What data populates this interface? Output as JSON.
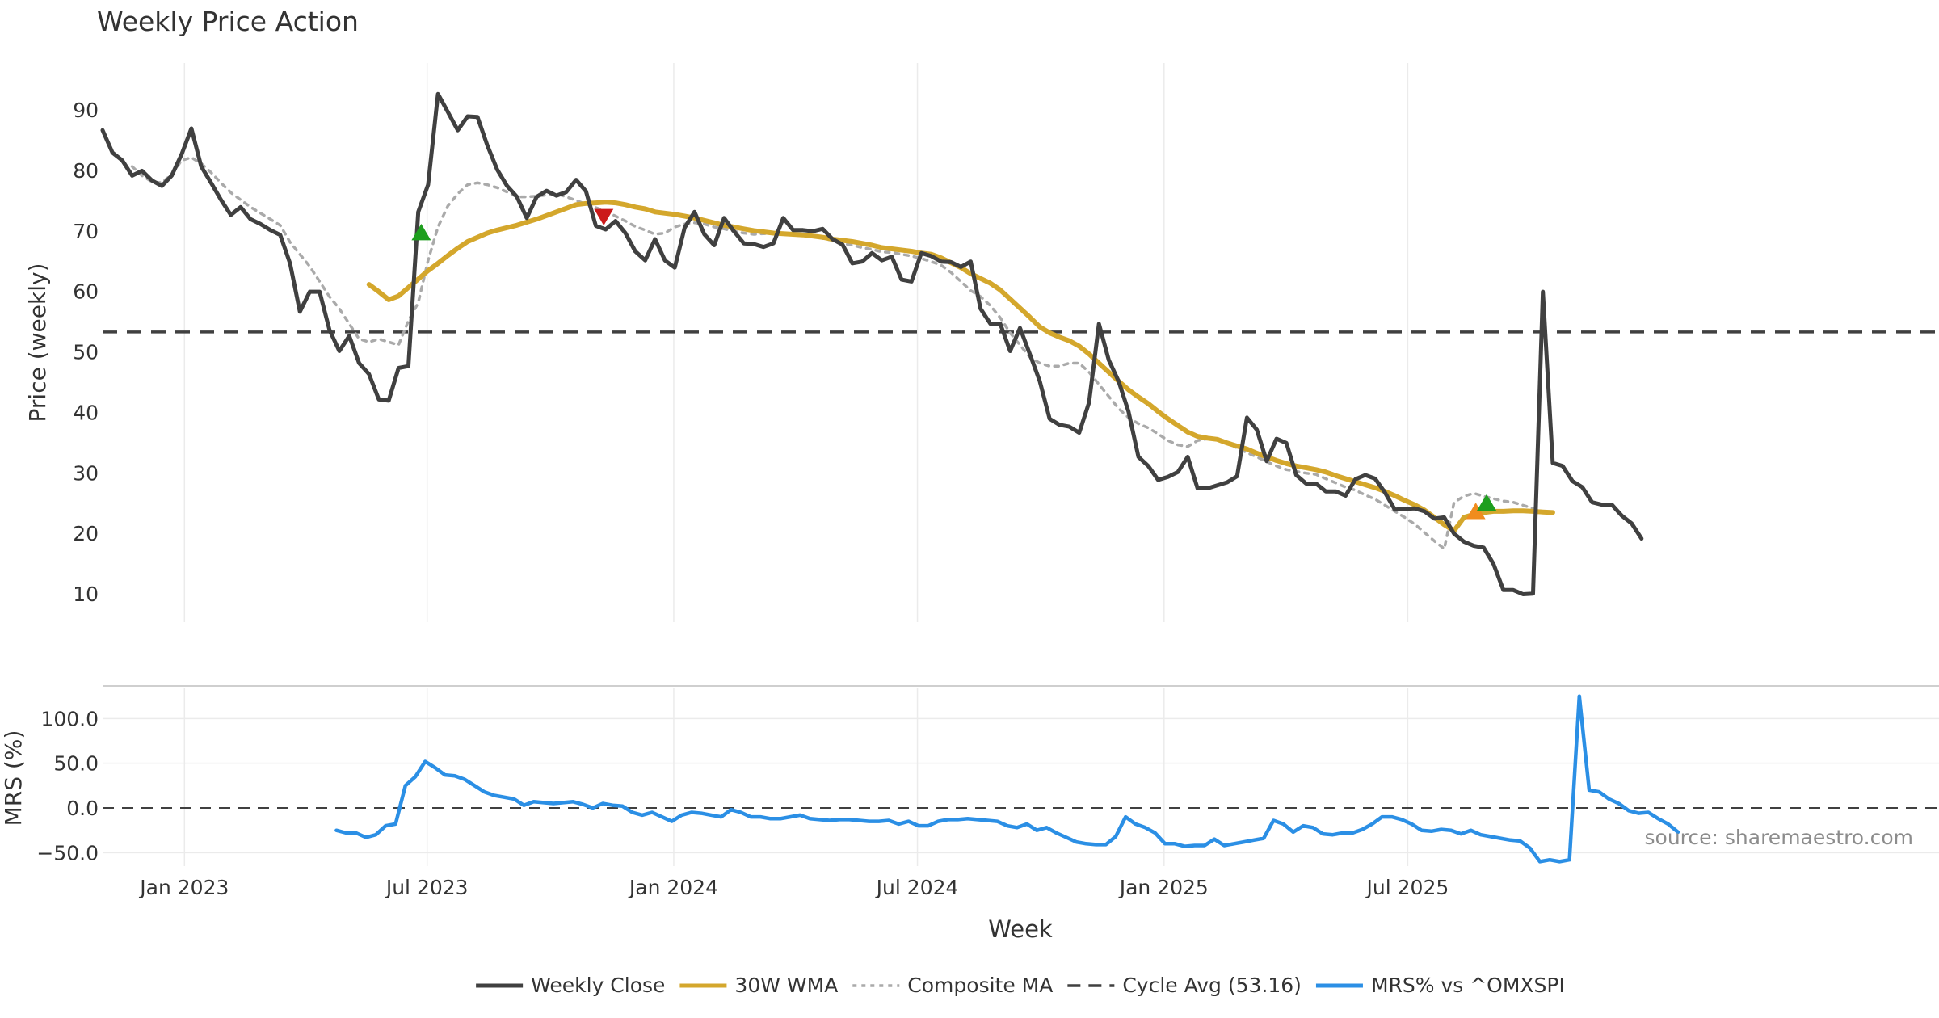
{
  "chart_data": [
    {
      "type": "line",
      "title": "Weekly Price Action",
      "xlabel": "",
      "ylabel": "Price (weekly)",
      "ylim": [
        4,
        98
      ],
      "yticks": [
        10,
        20,
        30,
        40,
        50,
        60,
        70,
        80,
        90
      ],
      "x_range_weeks": [
        0,
        155
      ],
      "cycle_avg": 53.16,
      "series": [
        {
          "name": "Weekly Close",
          "color": "#404040",
          "style": "solid",
          "start_week": 0,
          "values": [
            86.5,
            82.8,
            81.5,
            79,
            79.8,
            78.2,
            77.3,
            79,
            82.5,
            86.8,
            80.5,
            77.8,
            75,
            72.5,
            73.8,
            71.8,
            71,
            70,
            69.2,
            64.5,
            56.5,
            59.8,
            59.8,
            53.5,
            50,
            52.5,
            48,
            46.2,
            42,
            41.8,
            47.2,
            47.5,
            73,
            77.5,
            92.5,
            89.5,
            86.5,
            88.8,
            88.7,
            84,
            80,
            77.3,
            75.5,
            72,
            75.5,
            76.5,
            75.7,
            76.3,
            78.3,
            76.4,
            70.7,
            70.1,
            71.5,
            69.5,
            66.5,
            65,
            68.5,
            65,
            63.8,
            70.4,
            73,
            69.3,
            67.5,
            72,
            69.8,
            67.8,
            67.7,
            67.2,
            67.8,
            72,
            70,
            70,
            69.8,
            70.2,
            68.5,
            67.6,
            64.5,
            64.8,
            66.2,
            65,
            65.6,
            61.8,
            61.5,
            66.2,
            65.7,
            64.8,
            64.7,
            63.9,
            64.8,
            57,
            54.5,
            54.5,
            50,
            53.8,
            49.5,
            45,
            38.8,
            37.8,
            37.5,
            36.5,
            41.5,
            54.5,
            48.5,
            45,
            40,
            32.5,
            31,
            28.7,
            29.2,
            30,
            32.5,
            27.3,
            27.3,
            27.8,
            28.3,
            29.3,
            39,
            37,
            31.8,
            35.5,
            34.8,
            29.5,
            28.1,
            28.1,
            26.8,
            26.8,
            26.1,
            28.8,
            29.5,
            28.9,
            26.6,
            23.8,
            23.9,
            24,
            23.5,
            22.3,
            22.5,
            19.8,
            18.5,
            17.8,
            17.5,
            14.8,
            10.5,
            10.5,
            9.8,
            9.9,
            59.8,
            31.5,
            31,
            28.5,
            27.5,
            25,
            24.6,
            24.6,
            22.8,
            21.5,
            19
          ]
        },
        {
          "name": "30W WMA",
          "color": "#d4a72c",
          "style": "solid",
          "start_week": 27,
          "values": [
            61,
            59.8,
            58.5,
            59.1,
            60.5,
            61.9,
            63.3,
            64.5,
            65.8,
            67,
            68.1,
            68.8,
            69.5,
            70,
            70.4,
            70.8,
            71.3,
            71.8,
            72.4,
            73,
            73.6,
            74.2,
            74.4,
            74.5,
            74.6,
            74.5,
            74.2,
            73.8,
            73.5,
            73,
            72.8,
            72.6,
            72.3,
            72,
            71.6,
            71.2,
            70.8,
            70.5,
            70.2,
            69.9,
            69.7,
            69.5,
            69.4,
            69.3,
            69.2,
            69,
            68.8,
            68.5,
            68.3,
            68.1,
            67.8,
            67.5,
            67.1,
            66.9,
            66.7,
            66.5,
            66.2,
            66,
            65.4,
            64.6,
            63.8,
            62.8,
            62,
            61.2,
            60.1,
            58.6,
            57.1,
            55.6,
            54,
            53,
            52.3,
            51.7,
            50.8,
            49.5,
            48,
            46.5,
            45,
            43.6,
            42.4,
            41.3,
            40,
            38.8,
            37.7,
            36.6,
            35.9,
            35.6,
            35.4,
            34.8,
            34.3,
            33.8,
            33.1,
            32.5,
            31.9,
            31.4,
            31,
            30.7,
            30.4,
            30,
            29.4,
            28.9,
            28.4,
            27.9,
            27.4,
            26.8,
            26.1,
            25.3,
            24.6,
            23.7,
            22.5,
            21.3,
            20.3,
            22.5,
            23,
            23.3,
            23.5,
            23.5,
            23.6,
            23.6,
            23.5,
            23.4,
            23.3
          ]
        },
        {
          "name": "Composite MA",
          "color": "#aaaaaa",
          "style": "dotted",
          "start_week": 3,
          "values": [
            80.5,
            79,
            78,
            77.8,
            79.2,
            81.5,
            82,
            81,
            79.5,
            77.8,
            76.2,
            75,
            73.8,
            72.8,
            71.8,
            70.8,
            68,
            66,
            64,
            61.5,
            59,
            57,
            54.5,
            52,
            51.5,
            52,
            51.5,
            51,
            55,
            58,
            65,
            70.5,
            74,
            76,
            77.5,
            77.8,
            77.5,
            77,
            76.3,
            75.5,
            75.5,
            75.6,
            75.8,
            76,
            75.5,
            74.9,
            74.3,
            73.7,
            73.1,
            72.3,
            71.5,
            70.6,
            70,
            69.3,
            69.5,
            70.5,
            71,
            71.2,
            71,
            70.5,
            70.2,
            69.8,
            69.5,
            69.3,
            69.4,
            69.5,
            69.4,
            69.3,
            69.2,
            69,
            68.6,
            68.3,
            67.8,
            67.5,
            67.1,
            66.8,
            66.4,
            66.3,
            66,
            65.7,
            65.3,
            64.8,
            64.2,
            63,
            61.5,
            60,
            59,
            57.5,
            55.5,
            53,
            51,
            49,
            48,
            47.5,
            47.5,
            48,
            48,
            46.5,
            44.5,
            42.5,
            40.5,
            39,
            38,
            37.3,
            36.3,
            35.2,
            34.5,
            34.2,
            35.2,
            35.5,
            35.5,
            34.8,
            34,
            33.2,
            32.5,
            31.7,
            31,
            30.4,
            30.1,
            29.8,
            29.6,
            28.9,
            28.2,
            27.5,
            27,
            26.2,
            25.5,
            24.5,
            23.5,
            22.5,
            21.4,
            20,
            18.6,
            17.3,
            25,
            26,
            26.5,
            26,
            25.6,
            25.2,
            25,
            24.5,
            24
          ]
        },
        {
          "name": "Cycle Avg (53.16)",
          "color": "#404040",
          "style": "dashed",
          "value": 53.16
        }
      ],
      "markers": [
        {
          "week": 32.3,
          "value": 69.6,
          "shape": "triangle-up",
          "color": "#1e9e1e"
        },
        {
          "week": 50.8,
          "value": 72.2,
          "shape": "triangle-down",
          "color": "#cc1a1a"
        },
        {
          "week": 139.2,
          "value": 23.5,
          "shape": "triangle-up",
          "color": "#f08c1e"
        },
        {
          "week": 140.3,
          "value": 24.9,
          "shape": "triangle-up",
          "color": "#1e9e1e"
        }
      ],
      "x_ticks": [
        {
          "label": "Jan 2023",
          "week": 8.3
        },
        {
          "label": "Jul 2023",
          "week": 32.9
        },
        {
          "label": "Jan 2024",
          "week": 57.9
        },
        {
          "label": "Jul 2024",
          "week": 82.6
        },
        {
          "label": "Jan 2025",
          "week": 107.6
        },
        {
          "label": "Jul 2025",
          "week": 132.3
        }
      ]
    },
    {
      "type": "line",
      "title": "",
      "xlabel": "Week",
      "ylabel": "MRS (%)",
      "ylim": [
        -62,
        130
      ],
      "yticks": [
        100.0,
        50.0,
        0.0,
        -50.0
      ],
      "ytick_labels": [
        "100.0",
        "50.0",
        "0.0",
        "−50.0"
      ],
      "zero_line": 0,
      "series": [
        {
          "name": "MRS% vs ^OMXSPI",
          "color": "#2b8fe5",
          "style": "solid",
          "start_week": 23.7,
          "values": [
            -25,
            -28,
            -28,
            -33,
            -30,
            -20,
            -18,
            25,
            35,
            52,
            45,
            37,
            36,
            32,
            25,
            18,
            14,
            12,
            10,
            3,
            7,
            6,
            5,
            6,
            7,
            4,
            0,
            5,
            3,
            2,
            -5,
            -8,
            -5,
            -10,
            -15,
            -8,
            -5,
            -6,
            -8,
            -10,
            -2,
            -5,
            -10,
            -10,
            -12,
            -12,
            -10,
            -8,
            -12,
            -13,
            -14,
            -13,
            -13,
            -14,
            -15,
            -15,
            -14,
            -18,
            -15,
            -20,
            -20,
            -15,
            -13,
            -13,
            -12,
            -13,
            -14,
            -15,
            -20,
            -22,
            -18,
            -25,
            -22,
            -28,
            -33,
            -38,
            -40,
            -41,
            -41,
            -32,
            -10,
            -18,
            -22,
            -28,
            -40,
            -40,
            -43,
            -42,
            -42,
            -35,
            -42,
            -40,
            -38,
            -36,
            -34,
            -14,
            -18,
            -27,
            -20,
            -22,
            -29,
            -30,
            -28,
            -28,
            -24,
            -18,
            -10,
            -10,
            -13,
            -18,
            -25,
            -26,
            -24,
            -25,
            -29,
            -25,
            -30,
            -32,
            -34,
            -36,
            -37,
            -45,
            -60,
            -58,
            -60,
            -58,
            125,
            20,
            18,
            10,
            5,
            -3,
            -6,
            -5,
            -12,
            -18,
            -27
          ]
        }
      ],
      "x_ticks": [
        {
          "label": "Jan 2023",
          "week": 8.3
        },
        {
          "label": "Jul 2023",
          "week": 32.9
        },
        {
          "label": "Jan 2024",
          "week": 57.9
        },
        {
          "label": "Jul 2024",
          "week": 82.6
        },
        {
          "label": "Jan 2025",
          "week": 107.6
        },
        {
          "label": "Jul 2025",
          "week": 132.3
        }
      ],
      "annotation": "source: sharemaestro.com"
    }
  ],
  "legend": {
    "position": "bottom-center",
    "items": [
      {
        "label": "Weekly Close",
        "color": "#404040",
        "style": "solid"
      },
      {
        "label": "30W WMA",
        "color": "#d4a72c",
        "style": "solid"
      },
      {
        "label": "Composite MA",
        "color": "#aaaaaa",
        "style": "dotted"
      },
      {
        "label": "Cycle Avg (53.16)",
        "color": "#404040",
        "style": "dashed"
      },
      {
        "label": "MRS% vs ^OMXSPI",
        "color": "#2b8fe5",
        "style": "solid"
      }
    ]
  }
}
